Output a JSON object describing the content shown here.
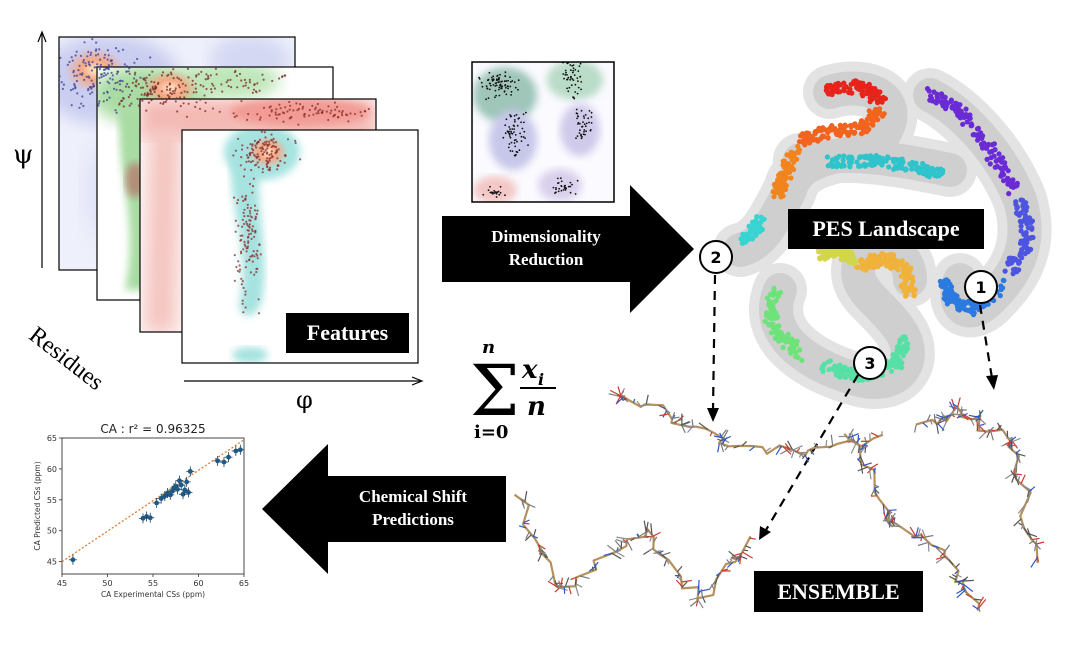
{
  "features_panel": {
    "psi_label": "ψ",
    "phi_label": "φ",
    "residues_label": "Residues",
    "title": "Features"
  },
  "arrows": {
    "dimensionality": "Dimensionality Reduction",
    "dimensionality_line1": "Dimensionality",
    "dimensionality_line2": "Reduction",
    "chemical_shift_line1": "Chemical Shift",
    "chemical_shift_line2": "Predictions"
  },
  "formula": {
    "upper": "n",
    "lower": "i=0",
    "numerator": "x",
    "subscript": "i",
    "denominator": "n"
  },
  "landscape": {
    "title": "PES Landscape",
    "markers": [
      "1",
      "2",
      "3"
    ]
  },
  "ensemble": {
    "title": "ENSEMBLE"
  },
  "colors": {
    "panel_blue": "#c9cdf0",
    "panel_green": "#a8dca3",
    "panel_red": "#f4b9b4",
    "panel_cyan": "#a6e3e0",
    "scatter_point": "#1f5a85",
    "fit_line": "#e07b2e"
  },
  "chart_data": {
    "type": "scatter",
    "title": "CA : r² = 0.96325",
    "xlabel": "CA Experimental CSs (ppm)",
    "ylabel": "CA Predicted CSs (ppm)",
    "xlim": [
      45,
      65
    ],
    "ylim": [
      43,
      65
    ],
    "xticks": [
      "45",
      "50",
      "55",
      "60",
      "65"
    ],
    "yticks": [
      "45",
      "50",
      "55",
      "60",
      "65"
    ],
    "x": [
      46.2,
      53.9,
      54.3,
      54.7,
      55.4,
      55.9,
      56.3,
      56.6,
      56.9,
      57.1,
      57.3,
      57.5,
      57.7,
      57.9,
      58.1,
      58.3,
      58.5,
      58.7,
      58.9,
      59.1,
      62.1,
      62.8,
      63.3,
      64.1,
      64.6
    ],
    "y": [
      45.3,
      52.0,
      52.3,
      52.1,
      54.5,
      55.2,
      55.6,
      56.1,
      55.8,
      56.4,
      56.9,
      57.2,
      56.7,
      58.1,
      57.4,
      55.9,
      56.6,
      57.9,
      56.2,
      59.6,
      61.3,
      61.1,
      61.9,
      62.9,
      63.1
    ],
    "fit": {
      "x": [
        45,
        65
      ],
      "y": [
        45,
        64.7
      ]
    }
  }
}
